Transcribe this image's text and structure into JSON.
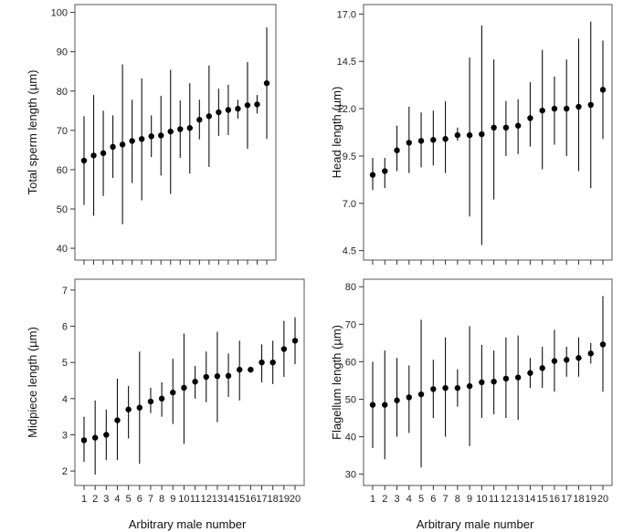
{
  "figure": {
    "x_axis_title_left": "Arbitrary male number",
    "x_axis_title_right": "Arbitrary male number"
  },
  "chart_data": [
    {
      "type": "scatter",
      "subtype": "point-with-range",
      "ylabel": "Total sperm length (µm)",
      "ylim": [
        37,
        102
      ],
      "yticks": [
        40,
        50,
        60,
        70,
        80,
        90,
        100
      ],
      "ytick_labels": [
        "40",
        "50",
        "60",
        "70",
        "80",
        "90",
        "100"
      ],
      "x": [
        1,
        2,
        3,
        4,
        5,
        6,
        7,
        8,
        9,
        10,
        11,
        12,
        13,
        14,
        15,
        16,
        17,
        18,
        19,
        20
      ],
      "mean": [
        62.3,
        63.6,
        64.2,
        65.8,
        66.4,
        67.3,
        67.8,
        68.5,
        68.7,
        69.7,
        70.3,
        70.6,
        72.7,
        73.6,
        74.6,
        75.2,
        75.5,
        76.4,
        76.6,
        82.0
      ],
      "low": [
        51.0,
        48.3,
        53.3,
        57.9,
        46.1,
        56.6,
        52.2,
        63.2,
        58.5,
        53.8,
        63.0,
        59.0,
        67.7,
        60.7,
        68.6,
        68.8,
        73.0,
        65.3,
        74.3,
        67.8
      ],
      "high": [
        73.6,
        79.0,
        75.0,
        73.8,
        86.8,
        77.8,
        83.2,
        73.8,
        78.8,
        85.4,
        77.6,
        82.0,
        77.8,
        86.5,
        80.6,
        81.6,
        77.8,
        87.4,
        79.0,
        96.2
      ],
      "x_tick_labels_shown": false
    },
    {
      "type": "scatter",
      "subtype": "point-with-range",
      "ylabel": "Head length (µm)",
      "ylim": [
        4.0,
        17.5
      ],
      "yticks": [
        4.5,
        7.0,
        9.5,
        12.0,
        14.5,
        17.0
      ],
      "ytick_labels": [
        "4.5",
        "7.0",
        "9.5",
        "12.0",
        "14.5",
        "17.0"
      ],
      "x": [
        1,
        2,
        3,
        4,
        5,
        6,
        7,
        8,
        9,
        10,
        11,
        12,
        13,
        14,
        15,
        16,
        17,
        18,
        19,
        20
      ],
      "mean": [
        8.5,
        8.7,
        9.8,
        10.2,
        10.3,
        10.35,
        10.4,
        10.6,
        10.6,
        10.65,
        11.0,
        11.0,
        11.1,
        11.5,
        11.9,
        12.0,
        12.0,
        12.1,
        12.2,
        13.0
      ],
      "low": [
        7.7,
        7.8,
        8.7,
        8.6,
        8.9,
        9.0,
        8.6,
        10.3,
        6.3,
        4.8,
        7.2,
        9.5,
        9.6,
        10.0,
        8.8,
        10.1,
        9.5,
        8.7,
        7.8,
        10.4
      ],
      "high": [
        9.4,
        9.4,
        11.1,
        12.1,
        11.8,
        11.9,
        12.4,
        11.0,
        14.7,
        16.4,
        14.6,
        12.4,
        12.5,
        13.4,
        15.1,
        13.7,
        14.6,
        15.7,
        16.6,
        15.6
      ],
      "x_tick_labels_shown": false
    },
    {
      "type": "scatter",
      "subtype": "point-with-range",
      "ylabel": "Midpiece length (µm)",
      "ylim": [
        1.6,
        7.3
      ],
      "yticks": [
        2,
        3,
        4,
        5,
        6,
        7
      ],
      "ytick_labels": [
        "2",
        "3",
        "4",
        "5",
        "6",
        "7"
      ],
      "x": [
        1,
        2,
        3,
        4,
        5,
        6,
        7,
        8,
        9,
        10,
        11,
        12,
        13,
        14,
        15,
        16,
        17,
        18,
        19,
        20
      ],
      "mean": [
        2.85,
        2.92,
        3.0,
        3.4,
        3.7,
        3.75,
        3.92,
        4.0,
        4.17,
        4.3,
        4.47,
        4.6,
        4.62,
        4.63,
        4.8,
        4.8,
        5.0,
        5.0,
        5.37,
        5.6
      ],
      "low": [
        2.25,
        1.9,
        2.3,
        2.3,
        2.9,
        2.2,
        3.6,
        3.5,
        3.3,
        2.75,
        4.0,
        3.9,
        3.35,
        4.05,
        3.95,
        4.75,
        4.45,
        4.4,
        4.6,
        4.95
      ],
      "high": [
        3.5,
        3.95,
        3.7,
        4.55,
        4.35,
        5.3,
        4.3,
        4.45,
        5.1,
        5.8,
        4.9,
        5.3,
        5.85,
        5.25,
        5.6,
        4.85,
        5.5,
        5.6,
        6.15,
        6.25
      ],
      "x_tick_labels_shown": true
    },
    {
      "type": "scatter",
      "subtype": "point-with-range",
      "ylabel": "Flagellum length (µm)",
      "ylim": [
        27,
        82
      ],
      "yticks": [
        30,
        40,
        50,
        60,
        70,
        80
      ],
      "ytick_labels": [
        "30",
        "40",
        "50",
        "60",
        "70",
        "80"
      ],
      "x": [
        1,
        2,
        3,
        4,
        5,
        6,
        7,
        8,
        9,
        10,
        11,
        12,
        13,
        14,
        15,
        16,
        17,
        18,
        19,
        20
      ],
      "mean": [
        48.5,
        48.5,
        49.7,
        50.5,
        51.3,
        52.7,
        53.0,
        53.0,
        53.5,
        54.5,
        54.7,
        55.5,
        55.8,
        57.0,
        58.3,
        60.2,
        60.5,
        61.0,
        62.2,
        64.6
      ],
      "low": [
        37.0,
        34.0,
        40.0,
        41.0,
        31.8,
        45.0,
        40.0,
        48.0,
        37.5,
        45.0,
        46.0,
        45.0,
        44.5,
        53.0,
        53.0,
        52.0,
        56.0,
        56.0,
        59.5,
        52.0
      ],
      "high": [
        60.0,
        63.0,
        61.0,
        59.0,
        71.2,
        60.5,
        66.5,
        58.0,
        69.5,
        64.5,
        63.0,
        66.5,
        67.0,
        61.0,
        64.0,
        68.5,
        64.0,
        66.5,
        65.0,
        77.5
      ],
      "x_tick_labels_shown": true
    }
  ]
}
